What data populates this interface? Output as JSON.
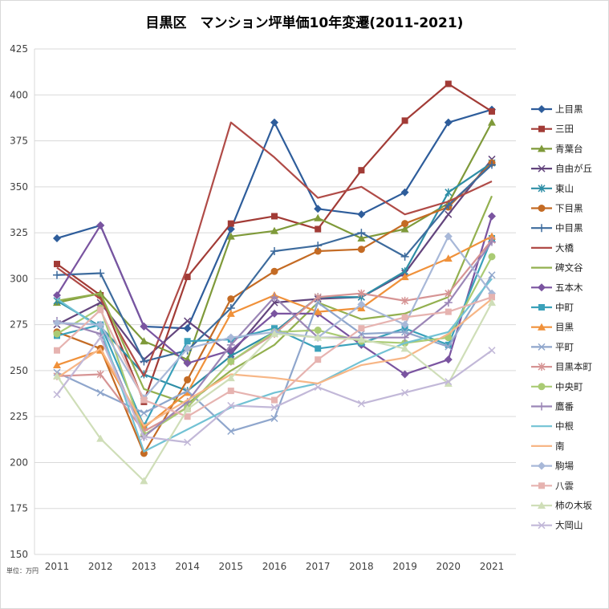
{
  "chart_data": {
    "type": "line",
    "title": "目黒区　マンション坪単価10年変遷(2011-2021)",
    "unit_note": "単位：万円",
    "xlabel": "",
    "ylabel": "",
    "ylim": [
      150,
      425
    ],
    "yticks": [
      150,
      175,
      200,
      225,
      250,
      275,
      300,
      325,
      350,
      375,
      400,
      425
    ],
    "categories": [
      "2011",
      "2012",
      "2013",
      "2014",
      "2015",
      "2016",
      "2017",
      "2018",
      "2019",
      "2020",
      "2021"
    ],
    "grid": true,
    "legend": "right",
    "series": [
      {
        "name": "上目黒",
        "color": "#2e5d9b",
        "marker": "diamond",
        "values": [
          322,
          329,
          274,
          273,
          327,
          385,
          338,
          335,
          347,
          385,
          392
        ]
      },
      {
        "name": "三田",
        "color": "#a23b36",
        "marker": "square",
        "values": [
          308,
          291,
          233,
          301,
          330,
          334,
          327,
          359,
          386,
          406,
          391
        ]
      },
      {
        "name": "青葉台",
        "color": "#7f9a3a",
        "marker": "triangle",
        "values": [
          287,
          292,
          266,
          256,
          323,
          326,
          333,
          322,
          327,
          341,
          385
        ]
      },
      {
        "name": "自由が丘",
        "color": "#63457d",
        "marker": "x",
        "values": [
          275,
          287,
          256,
          277,
          259,
          287,
          289,
          290,
          303,
          335,
          365
        ]
      },
      {
        "name": "東山",
        "color": "#2e8ea6",
        "marker": "asterisk",
        "values": [
          288,
          274,
          248,
          239,
          258,
          271,
          290,
          290,
          304,
          347,
          363
        ]
      },
      {
        "name": "下目黒",
        "color": "#c46b24",
        "marker": "circle",
        "values": [
          271,
          262,
          205,
          245,
          289,
          304,
          315,
          316,
          330,
          339,
          363
        ]
      },
      {
        "name": "中目黒",
        "color": "#3d6b9d",
        "marker": "plus",
        "values": [
          302,
          303,
          255,
          261,
          284,
          315,
          318,
          325,
          312,
          340,
          362
        ]
      },
      {
        "name": "大橋",
        "color": "#b04b47",
        "marker": "none",
        "values": [
          306,
          289,
          247,
          306,
          385,
          366,
          344,
          350,
          335,
          342,
          353
        ]
      },
      {
        "name": "碑文谷",
        "color": "#93b04f",
        "marker": "none",
        "values": [
          288,
          292,
          240,
          232,
          250,
          264,
          287,
          278,
          281,
          290,
          345
        ]
      },
      {
        "name": "五本木",
        "color": "#7a54a0",
        "marker": "diamond",
        "values": [
          291,
          329,
          274,
          254,
          261,
          281,
          281,
          264,
          248,
          256,
          334
        ]
      },
      {
        "name": "中町",
        "color": "#3ba1ba",
        "marker": "square",
        "values": [
          269,
          275,
          220,
          266,
          267,
          273,
          262,
          265,
          273,
          264,
          322
        ]
      },
      {
        "name": "目黒",
        "color": "#f0913a",
        "marker": "triangle",
        "values": [
          253,
          261,
          219,
          238,
          281,
          291,
          282,
          284,
          301,
          311,
          323
        ]
      },
      {
        "name": "平町",
        "color": "#8fa6cc",
        "marker": "x",
        "values": [
          249,
          238,
          227,
          239,
          217,
          224,
          287,
          270,
          271,
          263,
          302
        ]
      },
      {
        "name": "目黒本町",
        "color": "#d69494",
        "marker": "asterisk",
        "values": [
          247,
          248,
          217,
          230,
          255,
          270,
          290,
          292,
          288,
          292,
          321
        ]
      },
      {
        "name": "中央町",
        "color": "#aacb74",
        "marker": "circle",
        "values": [
          270,
          284,
          215,
          230,
          255,
          271,
          272,
          266,
          265,
          268,
          312
        ]
      },
      {
        "name": "鷹番",
        "color": "#9b86b6",
        "marker": "plus",
        "values": [
          277,
          270,
          214,
          233,
          264,
          290,
          268,
          268,
          268,
          287,
          320
        ]
      },
      {
        "name": "中根",
        "color": "#72c2d4",
        "marker": "none",
        "values": [
          289,
          273,
          206,
          218,
          230,
          238,
          243,
          255,
          265,
          271,
          300
        ]
      },
      {
        "name": "南",
        "color": "#f7b686",
        "marker": "none",
        "values": [
          246,
          262,
          220,
          234,
          248,
          246,
          243,
          253,
          257,
          270,
          289
        ]
      },
      {
        "name": "駒場",
        "color": "#a8b8d8",
        "marker": "diamond",
        "values": [
          276,
          275,
          235,
          262,
          268,
          271,
          268,
          286,
          275,
          323,
          292
        ]
      },
      {
        "name": "八雲",
        "color": "#e6b3b0",
        "marker": "square",
        "values": [
          261,
          283,
          234,
          225,
          239,
          234,
          256,
          273,
          279,
          282,
          290
        ]
      },
      {
        "name": "柿の木坂",
        "color": "#cfdeb8",
        "marker": "triangle",
        "values": [
          247,
          213,
          190,
          229,
          246,
          270,
          268,
          267,
          262,
          243,
          287
        ]
      },
      {
        "name": "大岡山",
        "color": "#c2b8d8",
        "marker": "x",
        "values": [
          237,
          268,
          214,
          211,
          231,
          230,
          241,
          232,
          238,
          244,
          261
        ]
      }
    ]
  }
}
